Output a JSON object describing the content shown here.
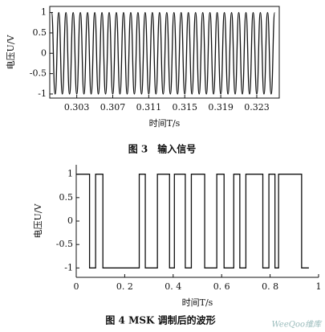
{
  "chart_data": [
    {
      "type": "line",
      "smooth": true,
      "frame": "box",
      "color": "#111111",
      "x_label": "时间T/s",
      "y_label": "电压U/V",
      "caption": "图 3　输入信号",
      "xlim": [
        0.3,
        0.3255
      ],
      "xticks": [
        0.303,
        0.307,
        0.311,
        0.315,
        0.319,
        0.323
      ],
      "ylim": [
        -1.1,
        1.15
      ],
      "yticks": [
        -1,
        -0.5,
        0,
        0.5,
        1
      ],
      "x": [
        0.3002,
        0.3006,
        0.301,
        0.3014,
        0.3018,
        0.3022,
        0.3026,
        0.303,
        0.3034,
        0.3038,
        0.3042,
        0.3046,
        0.305,
        0.3054,
        0.3058,
        0.3062,
        0.3066,
        0.307,
        0.3074,
        0.3078,
        0.3082,
        0.3086,
        0.309,
        0.3094,
        0.3098,
        0.3102,
        0.3106,
        0.311,
        0.3114,
        0.3118,
        0.3122,
        0.3126,
        0.313,
        0.3134,
        0.3138,
        0.3142,
        0.3146,
        0.315,
        0.3154,
        0.3158,
        0.3162,
        0.3166,
        0.317,
        0.3174,
        0.3178,
        0.3182,
        0.3186,
        0.319,
        0.3194,
        0.3198,
        0.3202,
        0.3206,
        0.321,
        0.3214,
        0.3218,
        0.3222,
        0.3226,
        0.323,
        0.3234,
        0.3238,
        0.3242,
        0.3246,
        0.325
      ],
      "values": [
        1,
        -1,
        1,
        -1,
        1,
        -1,
        1,
        -1,
        1,
        -1,
        1,
        -1,
        1,
        -1,
        1,
        -1,
        1,
        -1,
        1,
        -1,
        1,
        -1,
        1,
        -1,
        1,
        -1,
        1,
        -1,
        1,
        -1,
        1,
        -1,
        1,
        -1,
        1,
        -1,
        1,
        -1,
        1,
        -1,
        1,
        -1,
        1,
        -1,
        1,
        -1,
        1,
        -1,
        1,
        -1,
        1,
        -1,
        1,
        -1,
        1,
        -1,
        1,
        -1,
        1,
        -1,
        1,
        -1,
        1
      ]
    },
    {
      "type": "line",
      "step": true,
      "frame": "axes",
      "color": "#111111",
      "x_label": "时间T/s",
      "y_label": "电压U/V",
      "caption": "图 4  MSK 调制后的波形",
      "xlim": [
        0,
        1
      ],
      "xticks": [
        0,
        {
          "value": 0.2,
          "label": "0. 2"
        },
        {
          "value": 0.4,
          "label": "0. 4"
        },
        {
          "value": 0.6,
          "label": "0. 6"
        },
        {
          "value": 0.8,
          "label": "0. 8"
        },
        1
      ],
      "ylim": [
        -1.2,
        1.2
      ],
      "yticks": [
        -1,
        -0.5,
        0,
        0.5,
        1
      ],
      "x": [
        0,
        0.055,
        0.08,
        0.11,
        0.26,
        0.285,
        0.335,
        0.385,
        0.405,
        0.45,
        0.475,
        0.53,
        0.58,
        0.61,
        0.65,
        0.675,
        0.7,
        0.77,
        0.795,
        0.82,
        0.835,
        0.93,
        0.96
      ],
      "values": [
        1,
        -1,
        1,
        -1,
        1,
        -1,
        1,
        -1,
        1,
        -1,
        1,
        -1,
        1,
        -1,
        1,
        -1,
        1,
        -1,
        1,
        -1,
        1,
        -1,
        -1
      ]
    }
  ],
  "watermark": "WeeQoo维库"
}
